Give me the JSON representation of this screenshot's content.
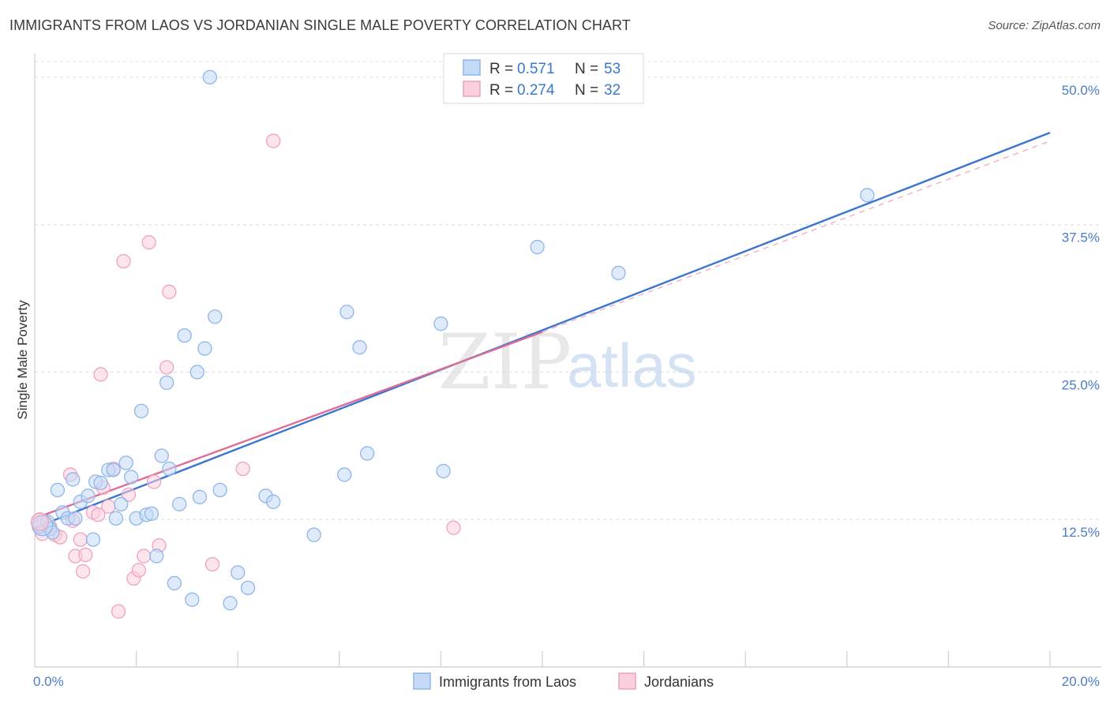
{
  "title": "IMMIGRANTS FROM LAOS VS JORDANIAN SINGLE MALE POVERTY CORRELATION CHART",
  "source": "Source: ZipAtlas.com",
  "watermark": {
    "zip": "ZIP",
    "atlas": "atlas"
  },
  "chart_data": {
    "type": "scatter",
    "ylabel": "Single Male Poverty",
    "xlim": [
      0,
      20
    ],
    "ylim": [
      0,
      52
    ],
    "x_tick_labels": [
      {
        "value": 0,
        "label": "0.0%"
      },
      {
        "value": 20,
        "label": "20.0%"
      }
    ],
    "x_minor_ticks": [
      2,
      4,
      6,
      8,
      10,
      12,
      14,
      16,
      18,
      20
    ],
    "y_ticks": [
      {
        "value": 12.5,
        "label": "12.5%"
      },
      {
        "value": 25,
        "label": "25.0%"
      },
      {
        "value": 37.5,
        "label": "37.5%"
      },
      {
        "value": 50,
        "label": "50.0%"
      }
    ],
    "grid": true,
    "legend_placement": "top-center",
    "stats": [
      {
        "r_label": "R =",
        "r": "0.571",
        "n_label": "N =",
        "n": "53",
        "color": "#8fb6ea",
        "fill": "#c5daf6"
      },
      {
        "r_label": "R =",
        "r": "0.274",
        "n_label": "N =",
        "n": "32",
        "color": "#f0a2bd",
        "fill": "#fbd0de"
      }
    ],
    "series": [
      {
        "name": "Immigrants from Laos",
        "color": "#8fb6ea",
        "fill": "#c5daf6",
        "trend_color": "#3b75d1",
        "trend": [
          [
            0,
            11.8
          ],
          [
            20,
            45.3
          ]
        ],
        "points": [
          [
            0.1,
            11.9
          ],
          [
            0.25,
            12.3
          ],
          [
            0.3,
            11.7
          ],
          [
            0.35,
            11.4
          ],
          [
            0.45,
            15.0
          ],
          [
            0.55,
            13.1
          ],
          [
            0.65,
            12.6
          ],
          [
            0.75,
            15.9
          ],
          [
            0.8,
            12.6
          ],
          [
            0.9,
            14.0
          ],
          [
            1.05,
            14.5
          ],
          [
            1.15,
            10.8
          ],
          [
            1.2,
            15.7
          ],
          [
            1.3,
            15.6
          ],
          [
            1.45,
            16.7
          ],
          [
            1.55,
            16.7
          ],
          [
            1.6,
            12.6
          ],
          [
            1.7,
            13.8
          ],
          [
            1.8,
            17.3
          ],
          [
            1.9,
            16.1
          ],
          [
            2.0,
            12.6
          ],
          [
            2.1,
            21.7
          ],
          [
            2.2,
            12.9
          ],
          [
            2.3,
            13.0
          ],
          [
            2.4,
            9.4
          ],
          [
            2.5,
            17.9
          ],
          [
            2.6,
            24.1
          ],
          [
            2.65,
            16.8
          ],
          [
            2.75,
            7.1
          ],
          [
            2.85,
            13.8
          ],
          [
            2.95,
            28.1
          ],
          [
            3.1,
            5.7
          ],
          [
            3.2,
            25.0
          ],
          [
            3.25,
            14.4
          ],
          [
            3.35,
            27.0
          ],
          [
            3.45,
            50.0
          ],
          [
            3.55,
            29.7
          ],
          [
            3.65,
            15.0
          ],
          [
            3.85,
            5.4
          ],
          [
            4.0,
            8.0
          ],
          [
            4.2,
            6.7
          ],
          [
            4.55,
            14.5
          ],
          [
            4.7,
            14.0
          ],
          [
            5.5,
            11.2
          ],
          [
            6.1,
            16.3
          ],
          [
            6.15,
            30.1
          ],
          [
            6.4,
            27.1
          ],
          [
            6.55,
            18.1
          ],
          [
            8.0,
            29.1
          ],
          [
            8.05,
            16.6
          ],
          [
            9.9,
            35.6
          ],
          [
            11.5,
            33.4
          ],
          [
            16.4,
            40.0
          ]
        ]
      },
      {
        "name": "Jordanians",
        "color": "#f0a2bd",
        "fill": "#fbd0de",
        "trend_color": "#de6c97",
        "trend": [
          [
            0,
            12.6
          ],
          [
            10,
            28.4
          ]
        ],
        "dash_extension": [
          [
            10,
            28.4
          ],
          [
            20,
            44.6
          ]
        ],
        "points": [
          [
            0.1,
            12.5
          ],
          [
            0.15,
            11.3
          ],
          [
            0.3,
            11.9
          ],
          [
            0.4,
            11.2
          ],
          [
            0.5,
            11.0
          ],
          [
            0.7,
            16.3
          ],
          [
            0.75,
            12.4
          ],
          [
            0.8,
            9.4
          ],
          [
            0.9,
            10.8
          ],
          [
            0.95,
            8.1
          ],
          [
            1.0,
            9.5
          ],
          [
            1.15,
            13.1
          ],
          [
            1.25,
            12.9
          ],
          [
            1.3,
            24.8
          ],
          [
            1.35,
            15.2
          ],
          [
            1.45,
            13.6
          ],
          [
            1.55,
            16.8
          ],
          [
            1.65,
            4.7
          ],
          [
            1.75,
            34.4
          ],
          [
            1.85,
            14.6
          ],
          [
            1.95,
            7.5
          ],
          [
            2.05,
            8.2
          ],
          [
            2.15,
            9.4
          ],
          [
            2.25,
            36.0
          ],
          [
            2.35,
            15.7
          ],
          [
            2.45,
            10.3
          ],
          [
            2.6,
            25.4
          ],
          [
            2.65,
            31.8
          ],
          [
            3.5,
            8.7
          ],
          [
            4.1,
            16.8
          ],
          [
            4.7,
            44.6
          ],
          [
            8.25,
            11.8
          ]
        ]
      }
    ]
  }
}
